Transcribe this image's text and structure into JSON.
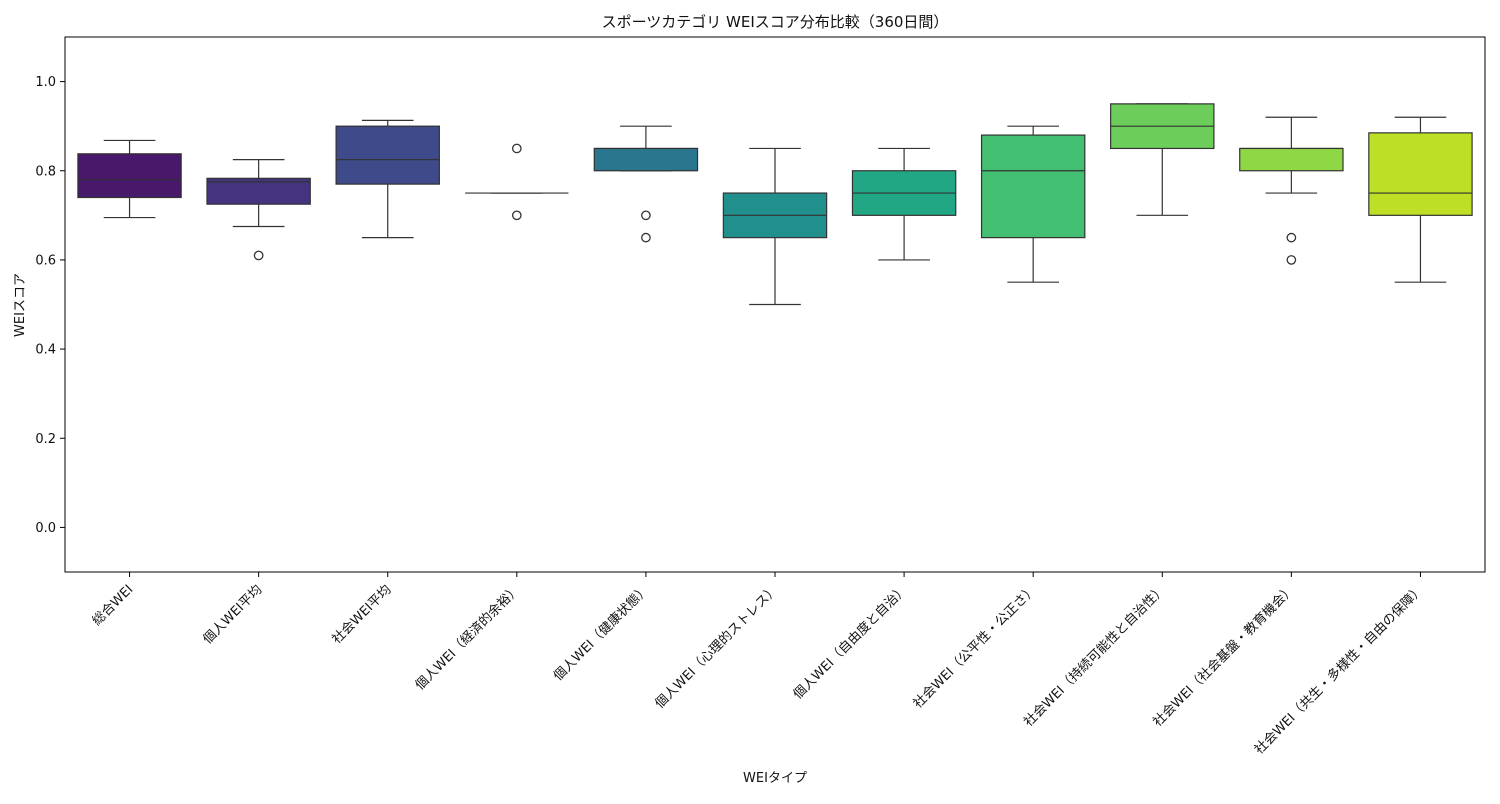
{
  "chart_data": {
    "type": "box",
    "title": "スポーツカテゴリ WEIスコア分布比較（360日間）",
    "xlabel": "WEIタイプ",
    "ylabel": "WEIスコア",
    "ylim": [
      -0.1,
      1.1
    ],
    "yticks": [
      "0.0",
      "0.2",
      "0.4",
      "0.6",
      "0.8",
      "1.0"
    ],
    "grid": false,
    "legend": "none",
    "categories": [
      "総合WEI",
      "個人WEI平均",
      "社会WEI平均",
      "個人WEI（経済的余裕）",
      "個人WEI（健康状態）",
      "個人WEI（心理的ストレス）",
      "個人WEI（自由度と自治）",
      "社会WEI（公平性・公正さ）",
      "社会WEI（持続可能性と自治性）",
      "社会WEI（社会基盤・教育機会）",
      "社会WEI（共生・多様性・自由の保障）"
    ],
    "boxes": [
      {
        "whisker_low": 0.695,
        "q1": 0.74,
        "median": 0.78,
        "q3": 0.838,
        "whisker_high": 0.868,
        "outliers": [],
        "color": "#48186a"
      },
      {
        "whisker_low": 0.675,
        "q1": 0.725,
        "median": 0.775,
        "q3": 0.783,
        "whisker_high": 0.825,
        "outliers": [
          0.61
        ],
        "color": "#46337f"
      },
      {
        "whisker_low": 0.65,
        "q1": 0.77,
        "median": 0.825,
        "q3": 0.9,
        "whisker_high": 0.913,
        "outliers": [],
        "color": "#3e4a89"
      },
      {
        "whisker_low": 0.75,
        "q1": 0.75,
        "median": 0.75,
        "q3": 0.75,
        "whisker_high": 0.75,
        "outliers": [
          0.7,
          0.85
        ],
        "color": "#35608d"
      },
      {
        "whisker_low": 0.8,
        "q1": 0.8,
        "median": 0.85,
        "q3": 0.85,
        "whisker_high": 0.9,
        "outliers": [
          0.65,
          0.7
        ],
        "color": "#2a768e"
      },
      {
        "whisker_low": 0.5,
        "q1": 0.65,
        "median": 0.7,
        "q3": 0.75,
        "whisker_high": 0.85,
        "outliers": [],
        "color": "#21908d"
      },
      {
        "whisker_low": 0.6,
        "q1": 0.7,
        "median": 0.75,
        "q3": 0.8,
        "whisker_high": 0.85,
        "outliers": [],
        "color": "#22a785"
      },
      {
        "whisker_low": 0.55,
        "q1": 0.65,
        "median": 0.8,
        "q3": 0.88,
        "whisker_high": 0.9,
        "outliers": [],
        "color": "#43bf71"
      },
      {
        "whisker_low": 0.7,
        "q1": 0.85,
        "median": 0.9,
        "q3": 0.95,
        "whisker_high": 0.95,
        "outliers": [],
        "color": "#6ccd5a"
      },
      {
        "whisker_low": 0.75,
        "q1": 0.8,
        "median": 0.85,
        "q3": 0.85,
        "whisker_high": 0.92,
        "outliers": [
          0.6,
          0.65
        ],
        "color": "#8fd744"
      },
      {
        "whisker_low": 0.55,
        "q1": 0.7,
        "median": 0.75,
        "q3": 0.885,
        "whisker_high": 0.92,
        "outliers": [],
        "color": "#bddf26"
      }
    ]
  }
}
